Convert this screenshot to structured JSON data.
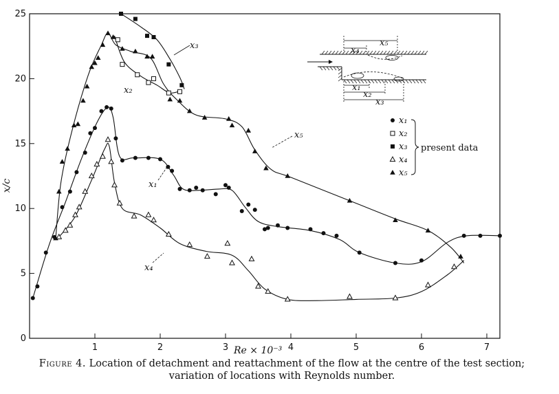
{
  "caption": {
    "label": "Figure 4.",
    "line1": "Location of detachment and reattachment of the flow at the centre of the test section;",
    "line2": "variation of locations with Reynolds number."
  },
  "chart_data": {
    "type": "scatter",
    "xlabel": "Re × 10⁻³",
    "ylabel": "x/c",
    "xlim": [
      0,
      7.2
    ],
    "ylim": [
      0,
      25
    ],
    "x_ticks": [
      "1",
      "2",
      "3",
      "4",
      "5",
      "6",
      "7"
    ],
    "y_ticks": [
      "0",
      "5",
      "10",
      "15",
      "20",
      "25"
    ],
    "grid": false,
    "legend": {
      "placement": "right",
      "entries": [
        "x₁",
        "x₂",
        "x₃",
        "x₄",
        "x₅"
      ],
      "group_label": "present data"
    },
    "inset_labels": [
      "x₅",
      "x₄",
      "x₁",
      "x₂",
      "x₃"
    ],
    "series": [
      {
        "name": "x₁",
        "marker": "filled-circle",
        "points": [
          [
            0.05,
            3.1
          ],
          [
            0.12,
            4.0
          ],
          [
            0.25,
            6.6
          ],
          [
            0.38,
            7.8
          ],
          [
            0.5,
            10.1
          ],
          [
            0.62,
            11.3
          ],
          [
            0.72,
            12.8
          ],
          [
            0.85,
            14.3
          ],
          [
            0.93,
            15.8
          ],
          [
            1.0,
            16.2
          ],
          [
            1.1,
            17.5
          ],
          [
            1.18,
            17.8
          ],
          [
            1.25,
            17.7
          ],
          [
            1.32,
            15.4
          ],
          [
            1.42,
            13.7
          ],
          [
            1.62,
            13.9
          ],
          [
            1.82,
            13.9
          ],
          [
            2.0,
            13.8
          ],
          [
            2.12,
            13.2
          ],
          [
            2.18,
            12.9
          ],
          [
            2.3,
            11.5
          ],
          [
            2.45,
            11.4
          ],
          [
            2.55,
            11.6
          ],
          [
            2.65,
            11.4
          ],
          [
            2.85,
            11.1
          ],
          [
            3.0,
            11.8
          ],
          [
            3.05,
            11.6
          ],
          [
            3.25,
            9.8
          ],
          [
            3.35,
            10.3
          ],
          [
            3.45,
            9.9
          ],
          [
            3.6,
            8.4
          ],
          [
            3.65,
            8.5
          ],
          [
            3.8,
            8.7
          ],
          [
            3.95,
            8.5
          ],
          [
            4.3,
            8.4
          ],
          [
            4.5,
            8.1
          ],
          [
            4.7,
            7.9
          ],
          [
            5.05,
            6.6
          ],
          [
            5.6,
            5.8
          ],
          [
            6.0,
            6.0
          ],
          [
            6.65,
            7.9
          ],
          [
            6.9,
            7.9
          ],
          [
            7.2,
            7.9
          ]
        ],
        "curve": [
          [
            0.05,
            3.1
          ],
          [
            0.3,
            7.2
          ],
          [
            0.55,
            10.5
          ],
          [
            0.8,
            13.9
          ],
          [
            1.05,
            16.8
          ],
          [
            1.2,
            17.8
          ],
          [
            1.28,
            17.0
          ],
          [
            1.38,
            14.0
          ],
          [
            1.6,
            13.9
          ],
          [
            2.0,
            13.8
          ],
          [
            2.2,
            12.6
          ],
          [
            2.35,
            11.5
          ],
          [
            2.6,
            11.4
          ],
          [
            2.9,
            11.5
          ],
          [
            3.1,
            11.4
          ],
          [
            3.3,
            10.1
          ],
          [
            3.5,
            9.0
          ],
          [
            3.8,
            8.6
          ],
          [
            4.3,
            8.3
          ],
          [
            4.75,
            7.6
          ],
          [
            5.05,
            6.6
          ],
          [
            5.6,
            5.8
          ],
          [
            6.0,
            5.9
          ],
          [
            6.4,
            7.4
          ],
          [
            6.7,
            7.9
          ],
          [
            7.2,
            7.9
          ]
        ]
      },
      {
        "name": "x₂",
        "marker": "open-square",
        "points": [
          [
            1.35,
            23.0
          ],
          [
            1.42,
            21.1
          ],
          [
            1.65,
            20.3
          ],
          [
            1.82,
            19.7
          ],
          [
            1.9,
            20.0
          ],
          [
            2.13,
            18.9
          ],
          [
            2.3,
            19.0
          ]
        ],
        "curve": [
          [
            1.3,
            23.3
          ],
          [
            1.45,
            21.3
          ],
          [
            1.7,
            20.2
          ],
          [
            1.95,
            19.5
          ],
          [
            2.15,
            18.9
          ],
          [
            2.33,
            19.1
          ]
        ]
      },
      {
        "name": "x₃",
        "marker": "filled-square",
        "points": [
          [
            1.4,
            25.0
          ],
          [
            1.62,
            24.6
          ],
          [
            1.8,
            23.3
          ],
          [
            1.9,
            23.2
          ],
          [
            2.13,
            21.1
          ],
          [
            2.33,
            19.5
          ]
        ],
        "curve": [
          [
            1.4,
            25.0
          ],
          [
            1.7,
            24.0
          ],
          [
            1.95,
            23.0
          ],
          [
            2.15,
            21.5
          ],
          [
            2.3,
            20.1
          ],
          [
            2.37,
            19.2
          ]
        ]
      },
      {
        "name": "x₄",
        "marker": "open-triangle",
        "points": [
          [
            0.45,
            7.8
          ],
          [
            0.55,
            8.3
          ],
          [
            0.62,
            8.7
          ],
          [
            0.7,
            9.5
          ],
          [
            0.76,
            10.1
          ],
          [
            0.85,
            11.3
          ],
          [
            0.95,
            12.5
          ],
          [
            1.03,
            13.4
          ],
          [
            1.12,
            14.0
          ],
          [
            1.2,
            15.3
          ],
          [
            1.25,
            13.6
          ],
          [
            1.3,
            11.8
          ],
          [
            1.38,
            10.4
          ],
          [
            1.6,
            9.4
          ],
          [
            1.82,
            9.5
          ],
          [
            1.9,
            9.1
          ],
          [
            2.13,
            8.0
          ],
          [
            2.45,
            7.2
          ],
          [
            2.72,
            6.3
          ],
          [
            3.03,
            7.3
          ],
          [
            3.1,
            5.8
          ],
          [
            3.4,
            6.1
          ],
          [
            3.5,
            4.0
          ],
          [
            3.65,
            3.6
          ],
          [
            3.95,
            3.0
          ],
          [
            4.9,
            3.2
          ],
          [
            5.6,
            3.1
          ],
          [
            6.1,
            4.1
          ],
          [
            6.5,
            5.5
          ]
        ],
        "curve": [
          [
            0.45,
            7.8
          ],
          [
            0.7,
            9.4
          ],
          [
            0.95,
            12.2
          ],
          [
            1.15,
            14.6
          ],
          [
            1.22,
            14.8
          ],
          [
            1.3,
            12.0
          ],
          [
            1.42,
            10.0
          ],
          [
            1.7,
            9.5
          ],
          [
            2.0,
            8.5
          ],
          [
            2.3,
            7.3
          ],
          [
            2.7,
            6.7
          ],
          [
            3.1,
            6.4
          ],
          [
            3.35,
            5.2
          ],
          [
            3.6,
            3.8
          ],
          [
            3.95,
            3.0
          ],
          [
            4.4,
            2.9
          ],
          [
            5.0,
            3.0
          ],
          [
            5.6,
            3.1
          ],
          [
            6.0,
            3.6
          ],
          [
            6.4,
            4.9
          ],
          [
            6.65,
            6.0
          ]
        ]
      },
      {
        "name": "x₅",
        "marker": "filled-triangle",
        "points": [
          [
            0.4,
            7.7
          ],
          [
            0.45,
            11.3
          ],
          [
            0.5,
            13.6
          ],
          [
            0.58,
            14.6
          ],
          [
            0.68,
            16.4
          ],
          [
            0.74,
            16.5
          ],
          [
            0.82,
            18.3
          ],
          [
            0.88,
            19.4
          ],
          [
            0.95,
            20.9
          ],
          [
            1.0,
            21.2
          ],
          [
            1.05,
            21.6
          ],
          [
            1.12,
            22.6
          ],
          [
            1.2,
            23.5
          ],
          [
            1.28,
            23.2
          ],
          [
            1.42,
            22.3
          ],
          [
            1.62,
            22.1
          ],
          [
            1.8,
            21.7
          ],
          [
            1.88,
            21.7
          ],
          [
            2.15,
            18.4
          ],
          [
            2.3,
            18.3
          ],
          [
            2.45,
            17.5
          ],
          [
            2.68,
            17.0
          ],
          [
            3.05,
            16.9
          ],
          [
            3.1,
            16.4
          ],
          [
            3.35,
            16.0
          ],
          [
            3.45,
            14.4
          ],
          [
            3.62,
            13.1
          ],
          [
            3.95,
            12.5
          ],
          [
            4.9,
            10.6
          ],
          [
            5.6,
            9.1
          ],
          [
            6.1,
            8.3
          ],
          [
            6.6,
            6.3
          ]
        ],
        "curve": [
          [
            0.4,
            7.7
          ],
          [
            0.48,
            12.0
          ],
          [
            0.65,
            16.0
          ],
          [
            0.9,
            20.3
          ],
          [
            1.1,
            22.6
          ],
          [
            1.2,
            23.5
          ],
          [
            1.32,
            22.6
          ],
          [
            1.55,
            22.1
          ],
          [
            1.85,
            21.6
          ],
          [
            2.05,
            19.6
          ],
          [
            2.25,
            18.4
          ],
          [
            2.55,
            17.2
          ],
          [
            3.0,
            16.9
          ],
          [
            3.25,
            16.3
          ],
          [
            3.45,
            14.5
          ],
          [
            3.7,
            13.0
          ],
          [
            4.0,
            12.4
          ],
          [
            4.9,
            10.6
          ],
          [
            5.6,
            9.2
          ],
          [
            6.1,
            8.3
          ],
          [
            6.45,
            7.0
          ],
          [
            6.65,
            5.8
          ]
        ]
      }
    ]
  }
}
